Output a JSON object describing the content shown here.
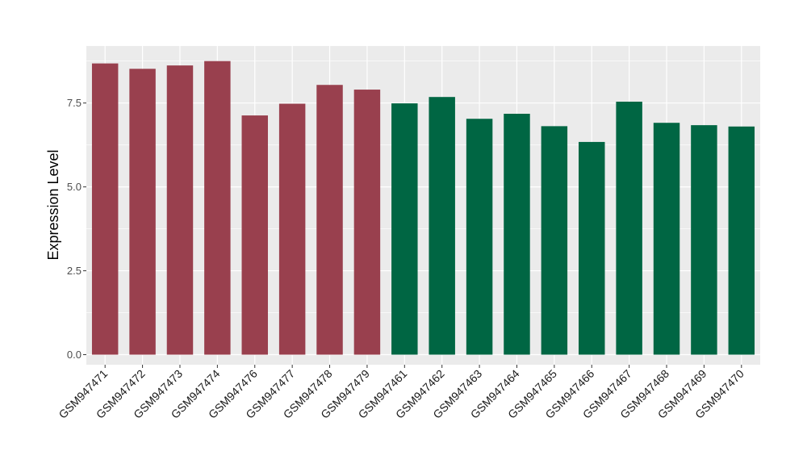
{
  "chart_data": {
    "type": "bar",
    "title": "",
    "xlabel": "",
    "ylabel": "Expression Level",
    "ylim": [
      -0.3,
      9.2
    ],
    "yticks": [
      0.0,
      2.5,
      5.0,
      7.5
    ],
    "ytick_labels": [
      "0.0",
      "2.5",
      "5.0",
      "7.5"
    ],
    "grid": true,
    "categories": [
      "GSM947471",
      "GSM947472",
      "GSM947473",
      "GSM947474",
      "GSM947476",
      "GSM947477",
      "GSM947478",
      "GSM947479",
      "GSM947461",
      "GSM947462",
      "GSM947463",
      "GSM947464",
      "GSM947465",
      "GSM947466",
      "GSM947467",
      "GSM947468",
      "GSM947469",
      "GSM947470"
    ],
    "values": [
      8.68,
      8.52,
      8.62,
      8.75,
      7.13,
      7.48,
      8.04,
      7.9,
      7.49,
      7.68,
      7.03,
      7.18,
      6.81,
      6.34,
      7.54,
      6.91,
      6.84,
      6.8
    ],
    "bar_colors": [
      "#99404E",
      "#99404E",
      "#99404E",
      "#99404E",
      "#99404E",
      "#99404E",
      "#99404E",
      "#99404E",
      "#006643",
      "#006643",
      "#006643",
      "#006643",
      "#006643",
      "#006643",
      "#006643",
      "#006643",
      "#006643",
      "#006643"
    ],
    "panel_background": "#EBEBEB",
    "grid_color": "#FFFFFF"
  }
}
